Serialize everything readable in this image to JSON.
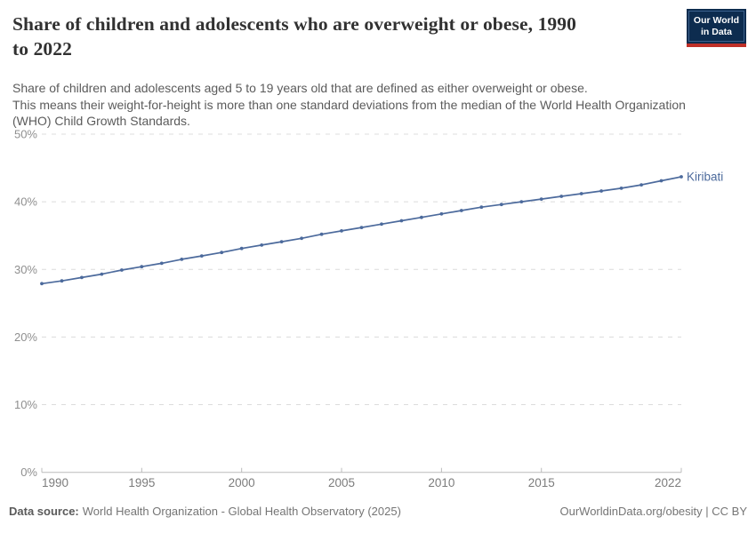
{
  "header": {
    "title": "Share of children and adolescents who are overweight or obese, 1990 to 2022",
    "title_line1": "Share of children and adolescents who are overweight or obese, 1990",
    "title_line2": "to 2022",
    "subtitle_line1": "Share of children and adolescents aged 5 to 19 years old that are defined as either overweight or obese.",
    "subtitle_line2": "This means their weight-for-height is more than one standard deviations from the median of the World Health Organization (WHO) Child Growth Standards.",
    "logo": {
      "line1": "Our World",
      "line2": "in Data",
      "bg_color": "#0d2c4f",
      "stripe_color": "#bf3028"
    }
  },
  "chart_data": {
    "type": "line",
    "title": "Share of children and adolescents who are overweight or obese, 1990 to 2022",
    "x": [
      1990,
      1991,
      1992,
      1993,
      1994,
      1995,
      1996,
      1997,
      1998,
      1999,
      2000,
      2001,
      2002,
      2003,
      2004,
      2005,
      2006,
      2007,
      2008,
      2009,
      2010,
      2011,
      2012,
      2013,
      2014,
      2015,
      2016,
      2017,
      2018,
      2019,
      2020,
      2021,
      2022
    ],
    "series": [
      {
        "name": "Kiribati",
        "color": "#4c6a9c",
        "values": [
          27.9,
          28.3,
          28.8,
          29.3,
          29.9,
          30.4,
          30.9,
          31.5,
          32.0,
          32.5,
          33.1,
          33.6,
          34.1,
          34.6,
          35.2,
          35.7,
          36.2,
          36.7,
          37.2,
          37.7,
          38.2,
          38.7,
          39.2,
          39.6,
          40.0,
          40.4,
          40.8,
          41.2,
          41.6,
          42.0,
          42.5,
          43.1,
          43.7
        ]
      }
    ],
    "xlabel": "",
    "ylabel": "",
    "xlim": [
      1990,
      2022
    ],
    "ylim": [
      0,
      50
    ],
    "y_ticks": [
      {
        "value": 0,
        "label": "0%"
      },
      {
        "value": 10,
        "label": "10%"
      },
      {
        "value": 20,
        "label": "20%"
      },
      {
        "value": 30,
        "label": "30%"
      },
      {
        "value": 40,
        "label": "40%"
      },
      {
        "value": 50,
        "label": "50%"
      }
    ],
    "x_ticks": [
      {
        "value": 1990,
        "label": "1990"
      },
      {
        "value": 1995,
        "label": "1995"
      },
      {
        "value": 2000,
        "label": "2000"
      },
      {
        "value": 2005,
        "label": "2005"
      },
      {
        "value": 2010,
        "label": "2010"
      },
      {
        "value": 2015,
        "label": "2015"
      },
      {
        "value": 2022,
        "label": "2022"
      }
    ],
    "grid": "horizontal-dashed",
    "legend": "end-of-line-label",
    "end_label": "Kiribati",
    "colors": {
      "grid": "#dcdcdc",
      "axis": "#bcbcbc",
      "y_tick_label": "#8f8f8f",
      "x_tick_label": "#7c7c7c"
    }
  },
  "footer": {
    "source_label": "Data source:",
    "source_text": "World Health Organization - Global Health Observatory (2025)",
    "credit": "OurWorldinData.org/obesity | CC BY"
  }
}
